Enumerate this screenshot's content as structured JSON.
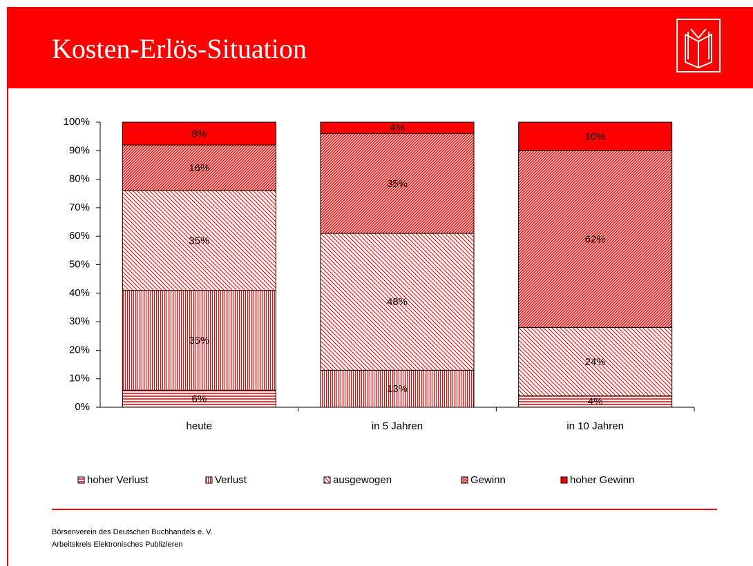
{
  "header": {
    "title": "Kosten-Erlös-Situation"
  },
  "chart_data": {
    "type": "stacked_bar",
    "categories": [
      "heute",
      "in 5 Jahren",
      "in 10 Jahren"
    ],
    "series": [
      {
        "name": "hoher Verlust",
        "color": "#ff0000",
        "hatch": "horizontal",
        "values": [
          6,
          0,
          4
        ],
        "value_labels": [
          "6%",
          null,
          "4%"
        ]
      },
      {
        "name": "Verlust",
        "color": "#ff0000",
        "hatch": "vertical",
        "values": [
          35,
          13,
          0
        ],
        "value_labels": [
          "35%",
          "13%",
          null
        ]
      },
      {
        "name": "ausgewogen",
        "color": "#ff0000",
        "hatch": "light-diagonal",
        "values": [
          35,
          48,
          24
        ],
        "value_labels": [
          "35%",
          "48%",
          "24%"
        ]
      },
      {
        "name": "Gewinn",
        "color": "#ff0000",
        "hatch": "diagonal",
        "values": [
          16,
          35,
          62
        ],
        "value_labels": [
          "16%",
          "35%",
          "62%"
        ]
      },
      {
        "name": "hoher Gewinn",
        "color": "#ff0000",
        "hatch": "solid",
        "values": [
          8,
          4,
          10
        ],
        "value_labels": [
          "8%",
          "4%",
          "10%"
        ]
      }
    ],
    "ylim": [
      0,
      100
    ],
    "yticks": [
      {
        "value": 0,
        "label": "0%"
      },
      {
        "value": 10,
        "label": "10%"
      },
      {
        "value": 20,
        "label": "20%"
      },
      {
        "value": 30,
        "label": "30%"
      },
      {
        "value": 40,
        "label": "40%"
      },
      {
        "value": 50,
        "label": "50%"
      },
      {
        "value": 60,
        "label": "60%"
      },
      {
        "value": 70,
        "label": "70%"
      },
      {
        "value": 80,
        "label": "80%"
      },
      {
        "value": 90,
        "label": "90%"
      },
      {
        "value": 100,
        "label": "100%"
      }
    ],
    "legend": "bottom"
  },
  "footer": {
    "lines": [
      "Börsenverein des Deutschen Buchhandels e. V.",
      "Arbeitskreis Elektronisches Publizieren"
    ]
  }
}
